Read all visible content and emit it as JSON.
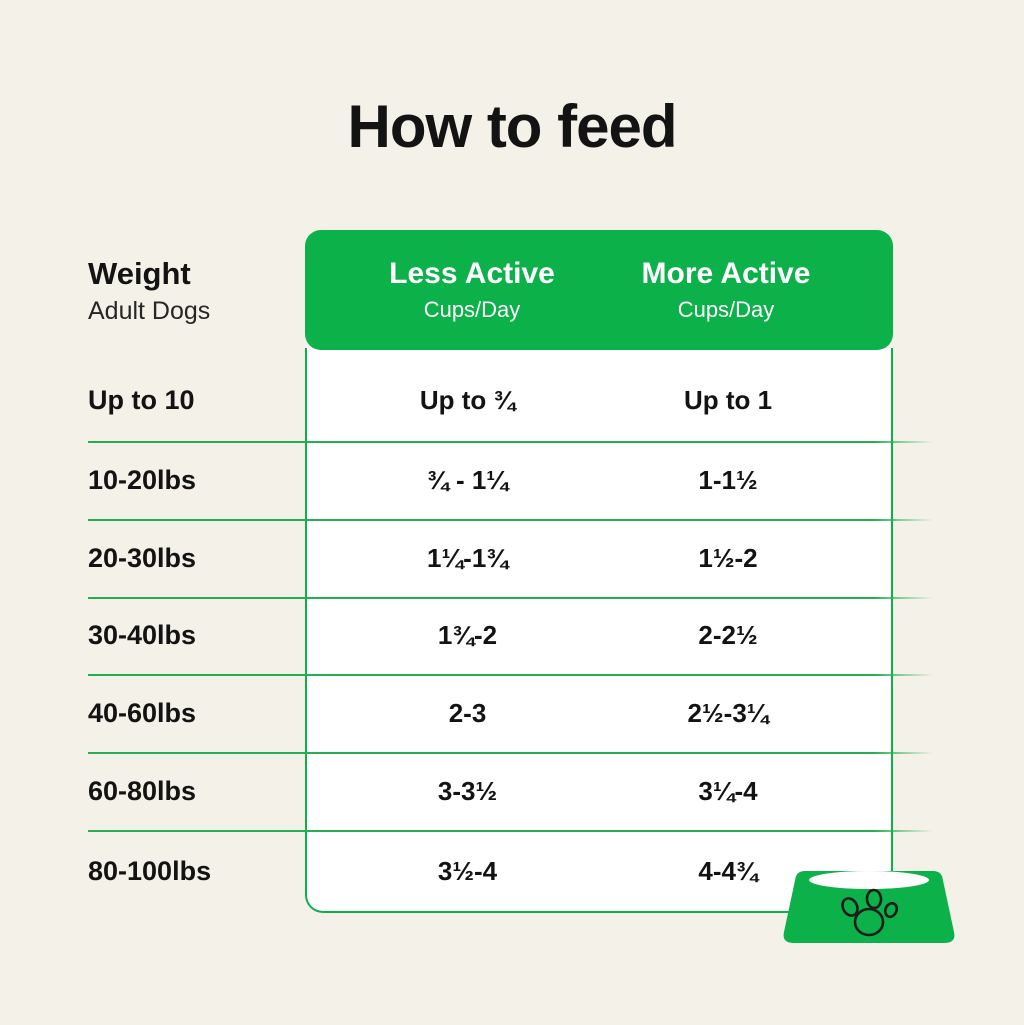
{
  "page": {
    "title": "How to feed"
  },
  "colors": {
    "green": "#0CB14A",
    "line_green": "#27AE53",
    "background": "#F4F1E8",
    "text": "#131313",
    "header_text": "#FFFFFF",
    "table_background": "#FFFFFF"
  },
  "icons": {
    "bowl": "dog-bowl-paw-icon"
  },
  "table": {
    "weight_header": {
      "title": "Weight",
      "subtitle": "Adult Dogs"
    },
    "columns": [
      {
        "label": "Less Active",
        "sublabel": "Cups/Day"
      },
      {
        "label": "More Active",
        "sublabel": "Cups/Day"
      }
    ],
    "rows": [
      {
        "weight": "Up to 10",
        "less_active": "Up to ¾",
        "more_active": "Up to 1"
      },
      {
        "weight": "10-20lbs",
        "less_active": "¾ - 1¼",
        "more_active": "1-1½"
      },
      {
        "weight": "20-30lbs",
        "less_active": "1¼-1¾",
        "more_active": "1½-2"
      },
      {
        "weight": "30-40lbs",
        "less_active": "1¾-2",
        "more_active": "2-2½"
      },
      {
        "weight": "40-60lbs",
        "less_active": "2-3",
        "more_active": "2½-3¼"
      },
      {
        "weight": "60-80lbs",
        "less_active": "3-3½",
        "more_active": "3¼-4"
      },
      {
        "weight": "80-100lbs",
        "less_active": "3½-4",
        "more_active": "4-4¾"
      }
    ]
  },
  "chart_data": {
    "type": "table",
    "title": "How to feed",
    "columns": [
      "Weight (Adult Dogs)",
      "Less Active (Cups/Day)",
      "More Active (Cups/Day)"
    ],
    "rows": [
      [
        "Up to 10",
        "Up to ¾",
        "Up to 1"
      ],
      [
        "10-20lbs",
        "¾ - 1¼",
        "1-1½"
      ],
      [
        "20-30lbs",
        "1¼-1¾",
        "1½-2"
      ],
      [
        "30-40lbs",
        "1¾-2",
        "2-2½"
      ],
      [
        "40-60lbs",
        "2-3",
        "2½-3¼"
      ],
      [
        "60-80lbs",
        "3-3½",
        "3¼-4"
      ],
      [
        "80-100lbs",
        "3½-4",
        "4-4¾"
      ]
    ]
  }
}
